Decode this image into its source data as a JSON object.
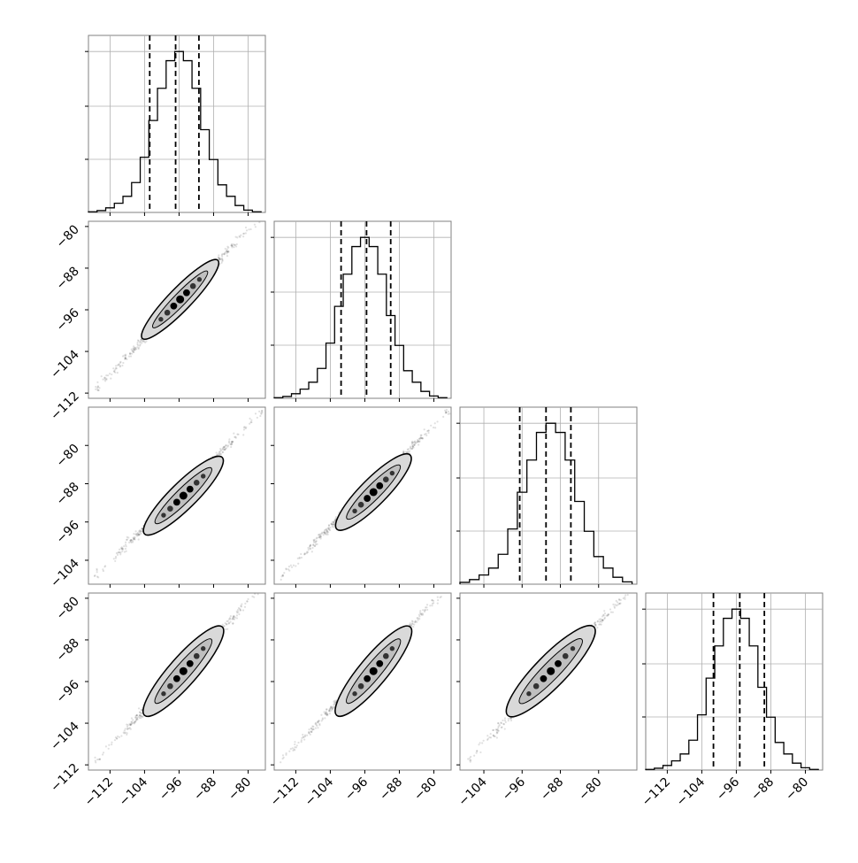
{
  "colors": {
    "frame": "#808080",
    "grid": "#b0b0b0",
    "line": "#000000",
    "contour_fill_light": "#d9d9d9",
    "contour_fill_dark": "#bfbfbf",
    "points": "#000000"
  },
  "chart_data": [
    {
      "type": "histogram",
      "panel": "diag-1",
      "title": "",
      "xlabel": "",
      "ylabel": "",
      "xlim": [
        -117,
        -76
      ],
      "xticks": [
        -112,
        -104,
        -96,
        -88,
        -80
      ],
      "bin_edges": [
        -117,
        -115,
        -113,
        -111,
        -109,
        -107,
        -105,
        -103,
        -101,
        -99,
        -97,
        -95,
        -93,
        -91,
        -89,
        -87,
        -85,
        -83,
        -81,
        -79,
        -77
      ],
      "counts": [
        0.3,
        0.8,
        2,
        4,
        7,
        13,
        24,
        40,
        54,
        66,
        70,
        66,
        54,
        36,
        23,
        12,
        7,
        3,
        1,
        0.3
      ],
      "quantile_lines": [
        -102.8,
        -96.8,
        -91.4
      ]
    },
    {
      "type": "histogram",
      "panel": "diag-2",
      "title": "",
      "xlabel": "",
      "ylabel": "",
      "xlim": [
        -117,
        -76
      ],
      "xticks": [
        -112,
        -104,
        -96,
        -88,
        -80
      ],
      "bin_edges": [
        -117,
        -115,
        -113,
        -111,
        -109,
        -107,
        -105,
        -103,
        -101,
        -99,
        -97,
        -95,
        -93,
        -91,
        -89,
        -87,
        -85,
        -83,
        -81,
        -79,
        -77
      ],
      "counts": [
        0.3,
        0.8,
        2,
        4,
        7,
        13,
        24,
        40,
        54,
        66,
        70,
        66,
        54,
        36,
        23,
        12,
        7,
        3,
        1,
        0.3
      ],
      "quantile_lines": [
        -101.5,
        -95.6,
        -90.0
      ]
    },
    {
      "type": "histogram",
      "panel": "diag-3",
      "title": "",
      "xlabel": "",
      "ylabel": "",
      "xlim": [
        -109,
        -72
      ],
      "xticks": [
        -104,
        -96,
        -88,
        -80
      ],
      "bin_edges": [
        -109,
        -107,
        -105,
        -103,
        -101,
        -99,
        -97,
        -95,
        -93,
        -91,
        -89,
        -87,
        -85,
        -83,
        -81,
        -79,
        -77,
        -75,
        -73
      ],
      "counts": [
        0.8,
        2,
        4,
        7,
        13,
        24,
        40,
        54,
        66,
        70,
        66,
        54,
        36,
        23,
        12,
        7,
        3,
        1
      ],
      "quantile_lines": [
        -96.5,
        -91.0,
        -85.8
      ]
    },
    {
      "type": "histogram",
      "panel": "diag-4",
      "title": "",
      "xlabel": "",
      "ylabel": "",
      "xlim": [
        -117,
        -76
      ],
      "xticks": [
        -112,
        -104,
        -96,
        -88,
        -80
      ],
      "bin_edges": [
        -117,
        -115,
        -113,
        -111,
        -109,
        -107,
        -105,
        -103,
        -101,
        -99,
        -97,
        -95,
        -93,
        -91,
        -89,
        -87,
        -85,
        -83,
        -81,
        -79,
        -77
      ],
      "counts": [
        0.3,
        0.8,
        2,
        4,
        7,
        13,
        24,
        40,
        54,
        66,
        70,
        66,
        54,
        36,
        23,
        12,
        7,
        3,
        1,
        0.3
      ],
      "quantile_lines": [
        -101.3,
        -95.2,
        -89.5
      ]
    },
    {
      "type": "scatter",
      "panel": "pair-2-1",
      "title": "",
      "xlabel": "",
      "ylabel": "",
      "xlim": [
        -117,
        -76
      ],
      "ylim": [
        -113,
        -79
      ],
      "xticks": [
        -112,
        -104,
        -96,
        -88,
        -80
      ],
      "yticks": [
        -112,
        -104,
        -96,
        -88,
        -80
      ],
      "trend": {
        "x_start": -115,
        "y_start": -111,
        "x_end": -77,
        "y_end": -78
      },
      "contour": {
        "x_start": -104.5,
        "y_start": -101.5,
        "x_end": -87.0,
        "y_end": -86.5,
        "halfwidth": 1.2
      }
    },
    {
      "type": "scatter",
      "panel": "pair-3-1",
      "title": "",
      "xlabel": "",
      "ylabel": "",
      "xlim": [
        -117,
        -76
      ],
      "ylim": [
        -109,
        -72
      ],
      "xticks": [
        -112,
        -104,
        -96,
        -88,
        -80
      ],
      "yticks": [
        -104,
        -96,
        -88,
        -80
      ],
      "trend": {
        "x_start": -115,
        "y_start": -107,
        "x_end": -77,
        "y_end": -73
      },
      "contour": {
        "x_start": -104.0,
        "y_start": -98.5,
        "x_end": -86.0,
        "y_end": -82.5,
        "halfwidth": 1.4
      }
    },
    {
      "type": "scatter",
      "panel": "pair-3-2",
      "title": "",
      "xlabel": "",
      "ylabel": "",
      "xlim": [
        -117,
        -76
      ],
      "ylim": [
        -109,
        -72
      ],
      "xticks": [
        -112,
        -104,
        -96,
        -88,
        -80
      ],
      "yticks": [
        -104,
        -96,
        -88,
        -80
      ],
      "trend": {
        "x_start": -115,
        "y_start": -107,
        "x_end": -77,
        "y_end": -73
      },
      "contour": {
        "x_start": -102.5,
        "y_start": -97.5,
        "x_end": -85.5,
        "y_end": -82.0,
        "halfwidth": 1.4
      }
    },
    {
      "type": "scatter",
      "panel": "pair-4-1",
      "title": "",
      "xlabel": "",
      "ylabel": "",
      "xlim": [
        -117,
        -76
      ],
      "ylim": [
        -113,
        -79
      ],
      "xticks": [
        -112,
        -104,
        -96,
        -88,
        -80
      ],
      "yticks": [
        -112,
        -104,
        -96,
        -88,
        -80
      ],
      "trend": {
        "x_start": -115,
        "y_start": -111,
        "x_end": -77,
        "y_end": -78
      },
      "contour": {
        "x_start": -104.0,
        "y_start": -102.5,
        "x_end": -86.0,
        "y_end": -85.5,
        "halfwidth": 1.5
      }
    },
    {
      "type": "scatter",
      "panel": "pair-4-2",
      "title": "",
      "xlabel": "",
      "ylabel": "",
      "xlim": [
        -117,
        -76
      ],
      "ylim": [
        -113,
        -79
      ],
      "xticks": [
        -112,
        -104,
        -96,
        -88,
        -80
      ],
      "yticks": [
        -112,
        -104,
        -96,
        -88,
        -80
      ],
      "trend": {
        "x_start": -115,
        "y_start": -111,
        "x_end": -77,
        "y_end": -78
      },
      "contour": {
        "x_start": -102.5,
        "y_start": -102.5,
        "x_end": -85.5,
        "y_end": -85.5,
        "halfwidth": 1.5
      }
    },
    {
      "type": "scatter",
      "panel": "pair-4-3",
      "title": "",
      "xlabel": "",
      "ylabel": "",
      "xlim": [
        -109,
        -72
      ],
      "ylim": [
        -113,
        -79
      ],
      "xticks": [
        -104,
        -96,
        -88,
        -80
      ],
      "yticks": [
        -112,
        -104,
        -96,
        -88,
        -80
      ],
      "trend": {
        "x_start": -107,
        "y_start": -111,
        "x_end": -73,
        "y_end": -78
      },
      "contour": {
        "x_start": -99.0,
        "y_start": -102.5,
        "x_end": -81.0,
        "y_end": -85.5,
        "halfwidth": 1.5
      }
    }
  ]
}
